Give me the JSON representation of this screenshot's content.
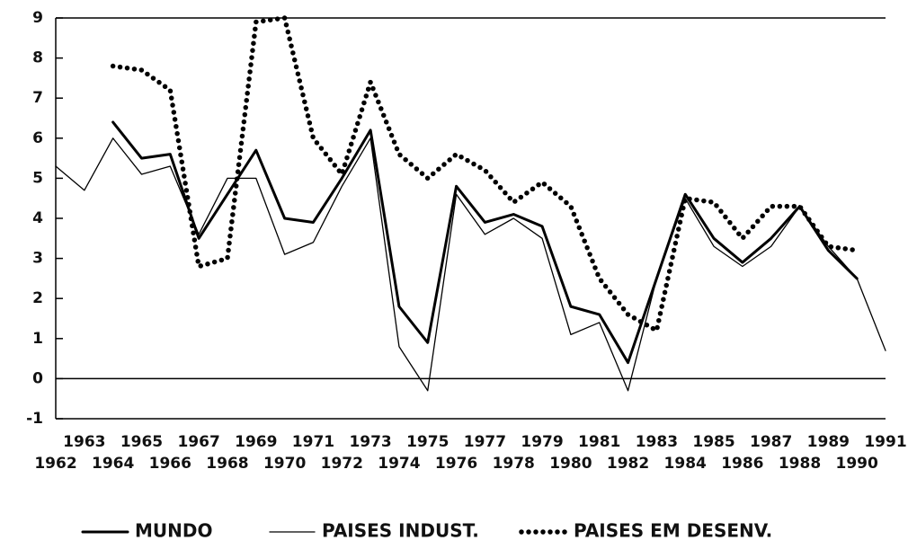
{
  "chart_data": {
    "type": "line",
    "x": [
      1962,
      1963,
      1964,
      1965,
      1966,
      1967,
      1968,
      1969,
      1970,
      1971,
      1972,
      1973,
      1974,
      1975,
      1976,
      1977,
      1978,
      1979,
      1980,
      1981,
      1982,
      1983,
      1984,
      1985,
      1986,
      1987,
      1988,
      1989,
      1990,
      1991
    ],
    "xlim": [
      1962,
      1991
    ],
    "xticks": [
      1962,
      1963,
      1964,
      1965,
      1966,
      1967,
      1968,
      1969,
      1970,
      1971,
      1972,
      1973,
      1974,
      1975,
      1976,
      1977,
      1978,
      1979,
      1980,
      1981,
      1982,
      1983,
      1984,
      1985,
      1986,
      1987,
      1988,
      1989,
      1990,
      1991
    ],
    "ylim": [
      -1,
      9
    ],
    "yticks": [
      -1,
      0,
      1,
      2,
      3,
      4,
      5,
      6,
      7,
      8,
      9
    ],
    "series": [
      {
        "name": "MUNDO",
        "color": "#000000",
        "values": [
          null,
          null,
          6.4,
          5.5,
          5.6,
          3.5,
          4.6,
          5.7,
          4.0,
          3.9,
          5.0,
          6.2,
          1.8,
          0.9,
          4.8,
          3.9,
          4.1,
          3.8,
          1.8,
          1.6,
          0.4,
          2.5,
          4.6,
          3.5,
          2.9,
          3.5,
          4.3,
          3.2,
          2.5,
          null
        ]
      },
      {
        "name": "PAISES INDUST.",
        "color": "#000000",
        "values": [
          5.3,
          4.7,
          6.0,
          5.1,
          5.3,
          3.6,
          5.0,
          5.0,
          3.1,
          3.4,
          4.8,
          6.0,
          0.8,
          -0.3,
          4.6,
          3.6,
          4.0,
          3.5,
          1.1,
          1.4,
          -0.3,
          2.5,
          4.5,
          3.3,
          2.8,
          3.3,
          4.3,
          3.3,
          2.5,
          0.7
        ]
      },
      {
        "name": "PAISES EM DESENV.",
        "color": "#000000",
        "values": [
          null,
          null,
          7.8,
          7.7,
          7.2,
          2.8,
          3.0,
          8.9,
          9.0,
          6.0,
          5.1,
          7.4,
          5.6,
          5.0,
          5.6,
          5.2,
          4.4,
          4.9,
          4.3,
          2.5,
          1.6,
          1.2,
          4.5,
          4.4,
          3.5,
          4.3,
          4.3,
          3.3,
          3.2,
          null
        ]
      }
    ]
  }
}
